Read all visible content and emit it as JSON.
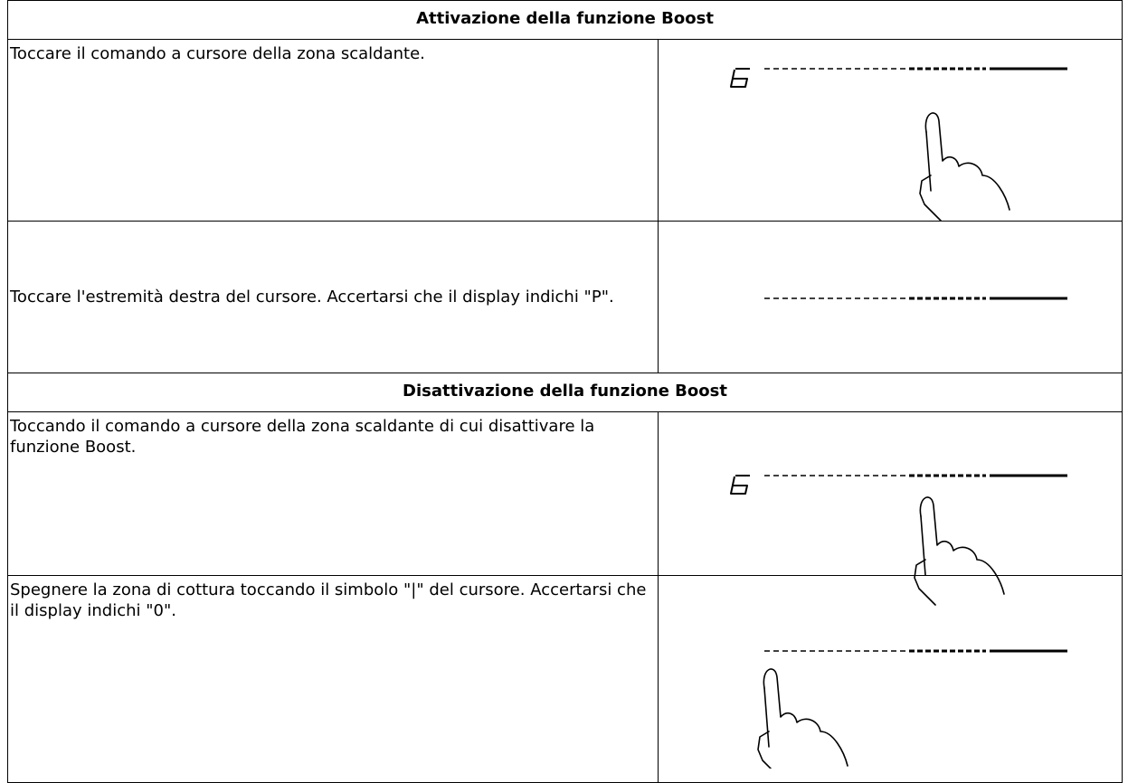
{
  "sections": [
    {
      "title": "Attivazione della funzione Boost",
      "rows": [
        {
          "text": "Toccare il comando a cursore della zona scaldante."
        },
        {
          "text": "Toccare l'estremità destra del cursore. Accertarsi che il display indichi \"P\"."
        }
      ]
    },
    {
      "title": "Disattivazione della funzione Boost",
      "rows": [
        {
          "text": "Toccando il comando a cursore della zona scaldante di cui disattivare la funzione Boost."
        },
        {
          "text": "Spegnere la zona di cottura toccando il simbolo \"|\" del cursore. Accertarsi che il display indichi \"0\"."
        }
      ]
    }
  ]
}
